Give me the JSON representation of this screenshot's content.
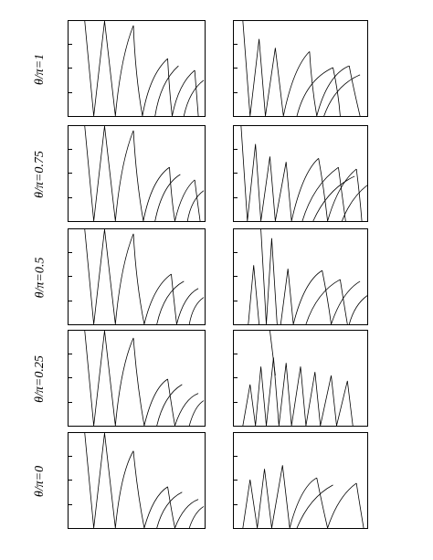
{
  "figure": {
    "rows": [
      {
        "label": "θ/π=1"
      },
      {
        "label": "θ/π=0.75"
      },
      {
        "label": "θ/π=0.5"
      },
      {
        "label": "θ/π=0.25"
      },
      {
        "label": "θ/π=0"
      }
    ],
    "columns": [
      "left",
      "right"
    ],
    "line_color": "#000000",
    "background": "#ffffff"
  }
}
